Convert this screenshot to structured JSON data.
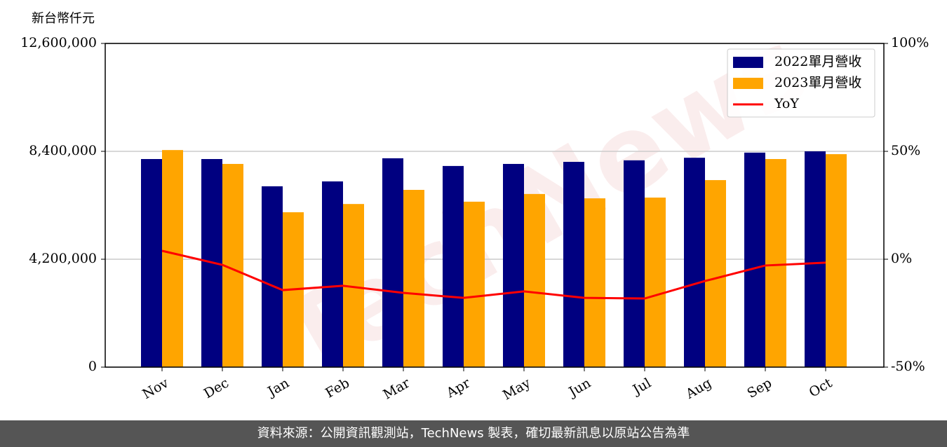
{
  "chart_data": {
    "type": "bar",
    "y_label": "新台幣仟元",
    "categories": [
      "Nov",
      "Dec",
      "Jan",
      "Feb",
      "Mar",
      "Apr",
      "May",
      "Jun",
      "Jul",
      "Aug",
      "Sep",
      "Oct"
    ],
    "series": [
      {
        "name": "2022單月營收",
        "color": "#000080",
        "type": "bar",
        "values": [
          8100000,
          8100000,
          7040000,
          7230000,
          8130000,
          7830000,
          7910000,
          7990000,
          8050000,
          8150000,
          8350000,
          8400000
        ]
      },
      {
        "name": "2023單月營收",
        "color": "#ffa500",
        "type": "bar",
        "values": [
          8450000,
          7910000,
          6030000,
          6350000,
          6900000,
          6440000,
          6740000,
          6570000,
          6600000,
          7280000,
          8100000,
          8290000
        ]
      },
      {
        "name": "YoY",
        "color": "#ff0000",
        "type": "line",
        "axis": "y2",
        "values": [
          3.9,
          -2.6,
          -14.3,
          -12.3,
          -15.6,
          -17.9,
          -14.9,
          -17.9,
          -18.2,
          -10.1,
          -2.9,
          -1.6
        ]
      }
    ],
    "ylim": [
      0,
      12600000
    ],
    "yticks": [
      0,
      {
        "value": 4200000,
        "label": "4,200,000"
      },
      {
        "value": 8400000,
        "label": "8,400,000"
      },
      {
        "value": 12600000,
        "label": "12,600,000"
      }
    ],
    "y2lim": [
      -50,
      100
    ],
    "y2ticks": [
      {
        "value": -50,
        "label": "-50%"
      },
      {
        "value": 0,
        "label": "0%"
      },
      {
        "value": 50,
        "label": "50%"
      },
      {
        "value": 100,
        "label": "100%"
      }
    ],
    "grid": true,
    "legend": "upper right"
  },
  "watermark": "TechNews",
  "footer": "資料來源：公開資訊觀測站，TechNews 製表，確切最新訊息以原站公告為準"
}
